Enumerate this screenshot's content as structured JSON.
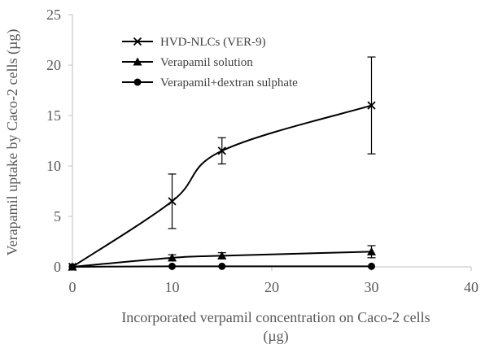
{
  "chart_data": {
    "type": "line",
    "title": "",
    "xlabel_line1": "Incorporated verpamil concentration on Caco-2 cells",
    "xlabel_line2": "(µg)",
    "ylabel": "Verapamil uptake by Caco-2 cells (µg)",
    "xlim": [
      0,
      40
    ],
    "ylim": [
      0,
      25
    ],
    "xticks": [
      0,
      10,
      20,
      30,
      40
    ],
    "yticks": [
      0,
      5,
      10,
      15,
      20,
      25
    ],
    "grid": false,
    "legend_position": "top-left",
    "series": [
      {
        "name": "HVD-NLCs (VER-9)",
        "marker": "x",
        "color": "#000000",
        "x": [
          0,
          10,
          15,
          30
        ],
        "y": [
          0,
          6.5,
          11.5,
          16
        ],
        "error": [
          0,
          2.7,
          1.3,
          4.8
        ]
      },
      {
        "name": "Verapamil solution",
        "marker": "triangle",
        "color": "#000000",
        "x": [
          0,
          10,
          15,
          30
        ],
        "y": [
          0,
          0.9,
          1.1,
          1.5
        ],
        "error": [
          0,
          0.3,
          0.3,
          0.6
        ]
      },
      {
        "name": "Verapamil+dextran sulphate",
        "marker": "circle",
        "color": "#000000",
        "x": [
          0,
          10,
          15,
          30
        ],
        "y": [
          0,
          0.05,
          0.05,
          0.05
        ],
        "error": [
          0,
          0,
          0,
          0
        ]
      }
    ]
  }
}
